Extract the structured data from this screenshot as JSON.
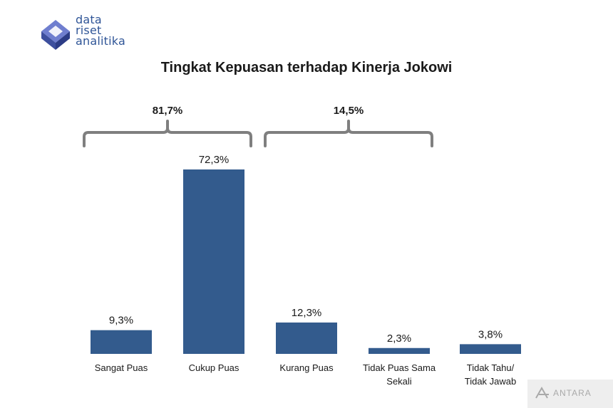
{
  "logo": {
    "lines": [
      "data",
      "riset",
      "analitika"
    ],
    "icon": "cube-logo-icon"
  },
  "watermark": {
    "text": "ANTARA",
    "icon": "antara-logo-icon"
  },
  "colors": {
    "bar": "#335b8d",
    "brace": "#7f7f7f",
    "logo": "#2f5597"
  },
  "chart_data": {
    "type": "bar",
    "title": "Tingkat Kepuasan terhadap Kinerja Jokowi",
    "categories": [
      [
        "Sangat Puas"
      ],
      [
        "Cukup Puas"
      ],
      [
        "Kurang Puas"
      ],
      [
        "Tidak Puas Sama",
        "Sekali"
      ],
      [
        "Tidak Tahu/",
        "Tidak Jawab"
      ]
    ],
    "values": [
      9.3,
      72.3,
      12.3,
      2.3,
      3.8
    ],
    "value_labels": [
      "9,3%",
      "72,3%",
      "12,3%",
      "2,3%",
      "3,8%"
    ],
    "ylim": [
      0,
      72.3
    ],
    "groups": [
      {
        "label": "81,7%",
        "categories": [
          0,
          1
        ]
      },
      {
        "label": "14,5%",
        "categories": [
          2,
          3
        ]
      }
    ],
    "grid": false,
    "legend": "none"
  }
}
